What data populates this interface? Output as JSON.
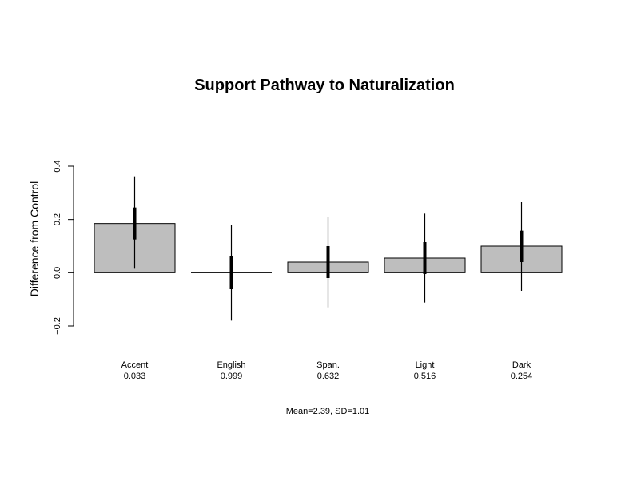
{
  "chart_data": {
    "type": "bar",
    "title": "Support Pathway to Naturalization",
    "ylabel": "Difference from Control",
    "xlabel": "",
    "ylim": [
      -0.2,
      0.4
    ],
    "yticks": [
      "-0.2",
      "0.0",
      "0.2",
      "0.4"
    ],
    "categories": [
      "Accent",
      "English",
      "Span.",
      "Light",
      "Dark"
    ],
    "p_values": [
      "0.033",
      "0.999",
      "0.632",
      "0.516",
      "0.254"
    ],
    "values": [
      0.185,
      0.0,
      0.04,
      0.055,
      0.1
    ],
    "ci_inner": [
      [
        0.125,
        0.245
      ],
      [
        -0.062,
        0.062
      ],
      [
        -0.02,
        0.1
      ],
      [
        -0.005,
        0.115
      ],
      [
        0.04,
        0.158
      ]
    ],
    "ci_outer": [
      [
        0.015,
        0.362
      ],
      [
        -0.18,
        0.178
      ],
      [
        -0.13,
        0.21
      ],
      [
        -0.112,
        0.222
      ],
      [
        -0.068,
        0.265
      ]
    ],
    "bar_color": "#bebebe",
    "note": "Mean=2.39, SD=1.01",
    "grid": false,
    "legend": "none"
  }
}
